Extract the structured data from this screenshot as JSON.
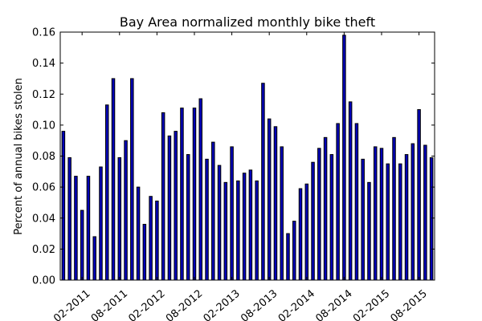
{
  "chart_data": {
    "type": "bar",
    "title": "Bay Area normalized monthly bike theft",
    "xlabel": "",
    "ylabel": "Percent of annual bikes stolen",
    "ylim": [
      0,
      0.16
    ],
    "yticks": [
      "0.00",
      "0.02",
      "0.04",
      "0.06",
      "0.08",
      "0.10",
      "0.12",
      "0.14",
      "0.16"
    ],
    "xtick_labels": [
      {
        "label": "02-2011",
        "index": 3
      },
      {
        "label": "08-2011",
        "index": 9
      },
      {
        "label": "02-2012",
        "index": 15
      },
      {
        "label": "08-2012",
        "index": 21
      },
      {
        "label": "02-2013",
        "index": 27
      },
      {
        "label": "08-2013",
        "index": 33
      },
      {
        "label": "02-2014",
        "index": 39
      },
      {
        "label": "08-2014",
        "index": 45
      },
      {
        "label": "02-2015",
        "index": 51
      },
      {
        "label": "08-2015",
        "index": 57
      }
    ],
    "values": [
      0.096,
      0.079,
      0.067,
      0.045,
      0.067,
      0.028,
      0.073,
      0.113,
      0.13,
      0.079,
      0.09,
      0.13,
      0.06,
      0.036,
      0.054,
      0.051,
      0.108,
      0.093,
      0.096,
      0.111,
      0.081,
      0.111,
      0.117,
      0.078,
      0.089,
      0.074,
      0.063,
      0.086,
      0.064,
      0.069,
      0.071,
      0.064,
      0.127,
      0.104,
      0.099,
      0.086,
      0.03,
      0.038,
      0.059,
      0.062,
      0.076,
      0.085,
      0.092,
      0.081,
      0.101,
      0.158,
      0.115,
      0.101,
      0.078,
      0.063,
      0.086,
      0.085,
      0.075,
      0.092,
      0.075,
      0.081,
      0.088,
      0.11,
      0.087,
      0.079
    ],
    "bar_color": "#0000b8",
    "grid": false,
    "legend": "none"
  }
}
